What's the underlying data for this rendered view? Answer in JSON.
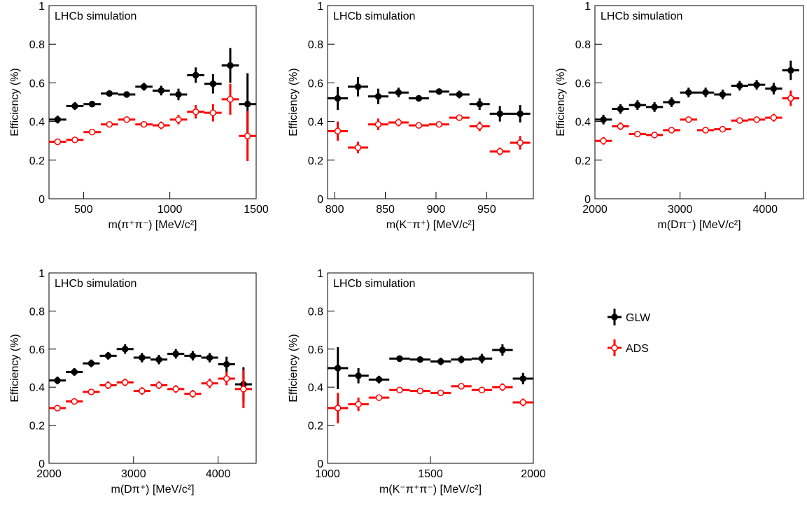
{
  "chart_data": [
    {
      "type": "errorbar",
      "annotation": "LHCb simulation",
      "xlabel": "m(π⁺π⁻) [MeV/c²]",
      "ylabel": "Efficiency (%)",
      "xlim": [
        300,
        1500
      ],
      "xticks": [
        500,
        1000,
        1500
      ],
      "ylim": [
        0,
        1
      ],
      "yticks": [
        0,
        0.2,
        0.4,
        0.6,
        0.8,
        1
      ],
      "x": [
        350,
        450,
        550,
        650,
        750,
        850,
        950,
        1050,
        1150,
        1250,
        1350,
        1450
      ],
      "xerr": 50,
      "series": [
        {
          "name": "GLW",
          "color": "#000000",
          "values": [
            0.41,
            0.48,
            0.49,
            0.545,
            0.54,
            0.58,
            0.56,
            0.54,
            0.64,
            0.595,
            0.69,
            0.49
          ],
          "errors": [
            0.02,
            0.02,
            0.015,
            0.015,
            0.015,
            0.02,
            0.025,
            0.03,
            0.04,
            0.05,
            0.09,
            0.16
          ]
        },
        {
          "name": "ADS",
          "color": "#ff0000",
          "values": [
            0.295,
            0.305,
            0.345,
            0.385,
            0.41,
            0.385,
            0.38,
            0.41,
            0.45,
            0.445,
            0.515,
            0.325
          ],
          "errors": [
            0.015,
            0.015,
            0.015,
            0.015,
            0.015,
            0.015,
            0.02,
            0.025,
            0.035,
            0.045,
            0.08,
            0.13
          ]
        }
      ]
    },
    {
      "type": "errorbar",
      "annotation": "LHCb simulation",
      "xlabel": "m(K⁻π⁺) [MeV/c²]",
      "ylabel": "Efficiency (%)",
      "xlim": [
        793,
        996
      ],
      "xticks": [
        800,
        850,
        900,
        950
      ],
      "ylim": [
        0,
        1
      ],
      "yticks": [
        0,
        0.2,
        0.4,
        0.6,
        0.8,
        1
      ],
      "x": [
        803,
        823,
        843,
        863,
        883,
        903,
        923,
        943,
        963,
        983
      ],
      "xerr": 10,
      "series": [
        {
          "name": "GLW",
          "color": "#000000",
          "values": [
            0.52,
            0.58,
            0.53,
            0.55,
            0.52,
            0.555,
            0.54,
            0.49,
            0.44,
            0.44
          ],
          "errors": [
            0.06,
            0.05,
            0.04,
            0.025,
            0.015,
            0.01,
            0.02,
            0.03,
            0.04,
            0.045
          ]
        },
        {
          "name": "ADS",
          "color": "#ff0000",
          "values": [
            0.35,
            0.265,
            0.385,
            0.395,
            0.38,
            0.385,
            0.42,
            0.375,
            0.245,
            0.29
          ],
          "errors": [
            0.05,
            0.03,
            0.03,
            0.02,
            0.015,
            0.01,
            0.015,
            0.025,
            0.02,
            0.035
          ]
        }
      ]
    },
    {
      "type": "errorbar",
      "annotation": "LHCb simulation",
      "xlabel": "m(Dπ⁻) [MeV/c²]",
      "ylabel": "Efficiency (%)",
      "xlim": [
        2000,
        4450
      ],
      "xticks": [
        2000,
        3000,
        4000
      ],
      "ylim": [
        0,
        1
      ],
      "yticks": [
        0,
        0.2,
        0.4,
        0.6,
        0.8,
        1
      ],
      "x": [
        2100,
        2300,
        2500,
        2700,
        2900,
        3100,
        3300,
        3500,
        3700,
        3900,
        4100,
        4300
      ],
      "xerr": 100,
      "series": [
        {
          "name": "GLW",
          "color": "#000000",
          "values": [
            0.41,
            0.465,
            0.485,
            0.475,
            0.5,
            0.55,
            0.55,
            0.54,
            0.585,
            0.59,
            0.57,
            0.665
          ],
          "errors": [
            0.025,
            0.025,
            0.025,
            0.025,
            0.025,
            0.025,
            0.025,
            0.025,
            0.025,
            0.025,
            0.03,
            0.05
          ]
        },
        {
          "name": "ADS",
          "color": "#ff0000",
          "values": [
            0.3,
            0.375,
            0.335,
            0.33,
            0.355,
            0.41,
            0.355,
            0.36,
            0.405,
            0.41,
            0.42,
            0.52
          ],
          "errors": [
            0.02,
            0.02,
            0.015,
            0.015,
            0.015,
            0.015,
            0.015,
            0.015,
            0.015,
            0.015,
            0.02,
            0.04
          ]
        }
      ]
    },
    {
      "type": "errorbar",
      "annotation": "LHCb simulation",
      "xlabel": "m(Dπ⁺) [MeV/c²]",
      "ylabel": "Efficiency (%)",
      "xlim": [
        2000,
        4450
      ],
      "xticks": [
        2000,
        3000,
        4000
      ],
      "ylim": [
        0,
        1
      ],
      "yticks": [
        0,
        0.2,
        0.4,
        0.6,
        0.8,
        1
      ],
      "x": [
        2100,
        2300,
        2500,
        2700,
        2900,
        3100,
        3300,
        3500,
        3700,
        3900,
        4100,
        4300
      ],
      "xerr": 100,
      "series": [
        {
          "name": "GLW",
          "color": "#000000",
          "values": [
            0.435,
            0.48,
            0.525,
            0.565,
            0.6,
            0.555,
            0.545,
            0.575,
            0.565,
            0.555,
            0.52,
            0.415
          ],
          "errors": [
            0.02,
            0.02,
            0.02,
            0.02,
            0.025,
            0.025,
            0.025,
            0.025,
            0.025,
            0.025,
            0.04,
            0.09
          ]
        },
        {
          "name": "ADS",
          "color": "#ff0000",
          "values": [
            0.29,
            0.325,
            0.375,
            0.41,
            0.425,
            0.38,
            0.41,
            0.39,
            0.365,
            0.42,
            0.445,
            0.39
          ],
          "errors": [
            0.015,
            0.015,
            0.015,
            0.02,
            0.02,
            0.02,
            0.02,
            0.02,
            0.02,
            0.025,
            0.035,
            0.1
          ]
        }
      ]
    },
    {
      "type": "errorbar",
      "annotation": "LHCb simulation",
      "xlabel": "m(K⁻π⁺π⁻) [MeV/c²]",
      "ylabel": "Efficiency (%)",
      "xlim": [
        1000,
        2000
      ],
      "xticks": [
        1000,
        1500,
        2000
      ],
      "ylim": [
        0,
        1
      ],
      "yticks": [
        0,
        0.2,
        0.4,
        0.6,
        0.8,
        1
      ],
      "x": [
        1050,
        1150,
        1250,
        1350,
        1450,
        1550,
        1650,
        1750,
        1850,
        1950
      ],
      "xerr": 50,
      "series": [
        {
          "name": "GLW",
          "color": "#000000",
          "values": [
            0.5,
            0.46,
            0.44,
            0.55,
            0.545,
            0.535,
            0.545,
            0.55,
            0.595,
            0.445
          ],
          "errors": [
            0.11,
            0.04,
            0.02,
            0.015,
            0.015,
            0.02,
            0.02,
            0.025,
            0.03,
            0.03
          ]
        },
        {
          "name": "ADS",
          "color": "#ff0000",
          "values": [
            0.29,
            0.31,
            0.345,
            0.385,
            0.38,
            0.37,
            0.405,
            0.385,
            0.4,
            0.32
          ],
          "errors": [
            0.08,
            0.035,
            0.015,
            0.01,
            0.01,
            0.01,
            0.015,
            0.015,
            0.02,
            0.02
          ]
        }
      ]
    }
  ]
}
